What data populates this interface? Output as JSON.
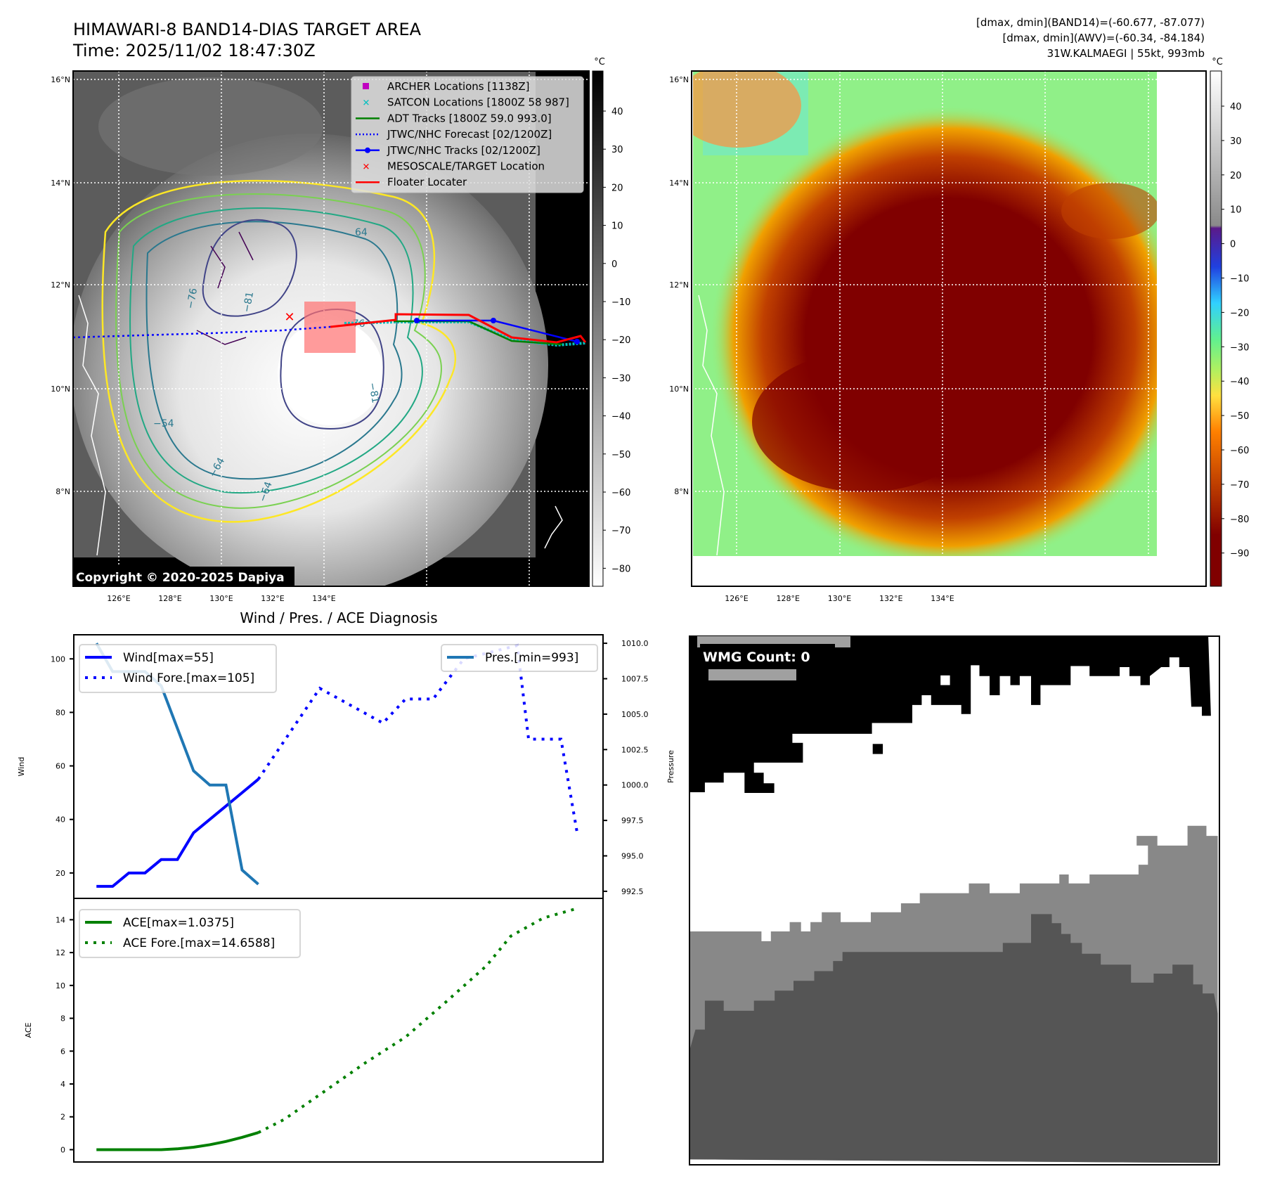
{
  "header": {
    "title_line1": "HIMAWARI-8 BAND14-DIAS TARGET AREA",
    "title_line2": "Time: 2025/11/02 18:47:30Z",
    "info_line1": "[dmax, dmin](BAND14)=(-60.677, -87.077)",
    "info_line2": "[dmax, dmin](AWV)=(-60.34, -84.184)",
    "info_line3": "31W.KALMAEGI | 55kt, 993mb"
  },
  "maps": {
    "lat_labels": [
      "16°N",
      "14°N",
      "12°N",
      "10°N",
      "8°N"
    ],
    "lon_labels": [
      "126°E",
      "128°E",
      "130°E",
      "132°E",
      "134°E"
    ],
    "colorbar_unit": "°C",
    "left_colorbar_ticks": [
      "40",
      "30",
      "20",
      "10",
      "0",
      "−10",
      "−20",
      "−30",
      "−40",
      "−50",
      "−60",
      "−70",
      "−80"
    ],
    "right_colorbar_ticks": [
      "40",
      "30",
      "20",
      "10",
      "0",
      "−10",
      "−20",
      "−30",
      "−40",
      "−50",
      "−60",
      "−70",
      "−80",
      "−90"
    ],
    "copyright": "Copyright © 2020-2025 Dapiya",
    "contour_labels": [
      "−76",
      "−81",
      "−81",
      "−54",
      "−64",
      "−64",
      "64",
      "−76"
    ],
    "legend": [
      {
        "label": "ARCHER Locations [1138Z]",
        "color": "#c000c0"
      },
      {
        "label": "SATCON Locations [1800Z 58 987]",
        "color": "#00c0c0"
      },
      {
        "label": "ADT Tracks [1800Z 59.0 993.0]",
        "color": "#008000"
      },
      {
        "label": "JTWC/NHC Forecast [02/1200Z]",
        "color": "#0000ff"
      },
      {
        "label": "JTWC/NHC Tracks [02/1200Z]",
        "color": "#0000ff"
      },
      {
        "label": "MESOSCALE/TARGET Location",
        "color": "#ff0000"
      },
      {
        "label": "Floater Locater",
        "color": "#ff0000"
      }
    ]
  },
  "wmg": {
    "label": "WMG Count: 0"
  },
  "chart_data": [
    {
      "type": "line",
      "title": "Wind / Pres. / ACE Diagnosis",
      "ylabel": "Wind",
      "y2label": "Pressure",
      "ylim": [
        10.5,
        109
      ],
      "y2lim": [
        992,
        1010.6
      ],
      "xlim": [
        -1.4,
        31.3
      ],
      "yticks": [
        "20",
        "40",
        "60",
        "80",
        "100"
      ],
      "y2ticks": [
        "992.5",
        "995.0",
        "997.5",
        "1000.0",
        "1002.5",
        "1005.0",
        "1007.5",
        "1010.0"
      ],
      "series": [
        {
          "name": "Wind[max=55]",
          "color": "#0000ff",
          "style": "solid",
          "axis": "left",
          "x": [
            0,
            1,
            2,
            3,
            4,
            5,
            6,
            7,
            8,
            9,
            10
          ],
          "values": [
            15,
            15,
            20,
            20,
            25,
            25,
            35,
            40,
            45,
            50,
            55
          ]
        },
        {
          "name": "Wind Fore.[max=105]",
          "color": "#0000ff",
          "style": "dotted",
          "axis": "left",
          "x": [
            10,
            13.8,
            17.7,
            19.1,
            20.8,
            22.7,
            26,
            26.7,
            28.7,
            29.7
          ],
          "values": [
            55,
            89,
            76,
            85,
            85,
            100,
            105,
            70,
            70,
            35
          ]
        },
        {
          "name": "Pres.[min=993]",
          "color": "#1f77b4",
          "style": "solid",
          "axis": "right",
          "x": [
            0,
            1,
            2,
            3,
            4,
            5,
            6,
            7,
            8,
            9,
            10
          ],
          "values": [
            1010,
            1008,
            1008,
            1008,
            1007,
            1004,
            1001,
            1000,
            1000,
            994,
            993
          ]
        }
      ]
    },
    {
      "type": "line",
      "ylabel": "ACE",
      "ylim": [
        -0.75,
        15.3
      ],
      "xlim": [
        -1.4,
        31.3
      ],
      "yticks": [
        "0",
        "2",
        "4",
        "6",
        "8",
        "10",
        "12",
        "14"
      ],
      "series": [
        {
          "name": "ACE[max=1.0375]",
          "color": "#008000",
          "style": "solid",
          "x": [
            0,
            1,
            2,
            3,
            4,
            5,
            6,
            7,
            8,
            9,
            10
          ],
          "values": [
            0,
            0,
            0,
            0,
            0,
            0.05,
            0.15,
            0.3,
            0.5,
            0.75,
            1.04
          ]
        },
        {
          "name": "ACE Fore.[max=14.6588]",
          "color": "#008000",
          "style": "dotted",
          "x": [
            10,
            11.6,
            14.1,
            16.6,
            19.1,
            21.6,
            24.1,
            25.6,
            27.6,
            29.6
          ],
          "values": [
            1.04,
            1.84,
            3.56,
            5.28,
            6.86,
            9.0,
            11.2,
            13.0,
            14.1,
            14.66
          ]
        }
      ]
    }
  ]
}
